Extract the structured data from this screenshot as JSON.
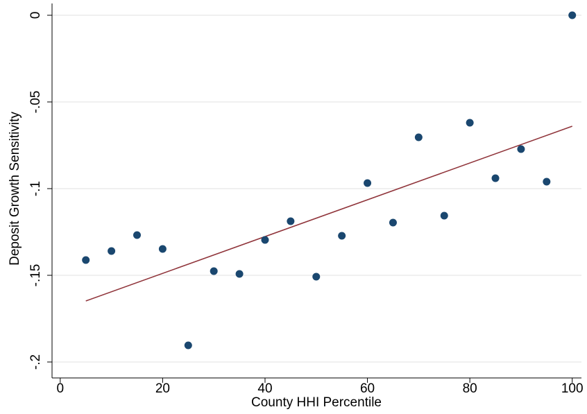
{
  "chart_data": {
    "type": "scatter",
    "x_label": "County HHI Percentile",
    "y_label": "Deposit Growth Sensitivity",
    "x": [
      5,
      10,
      15,
      20,
      25,
      30,
      35,
      40,
      45,
      50,
      55,
      60,
      65,
      70,
      75,
      80,
      85,
      90,
      95,
      100
    ],
    "values": [
      -0.1412,
      -0.136,
      -0.1268,
      -0.1348,
      -0.1904,
      -0.1476,
      -0.1492,
      -0.1296,
      -0.1188,
      -0.1508,
      -0.1272,
      -0.0968,
      -0.1196,
      -0.0704,
      -0.1156,
      -0.062,
      -0.094,
      -0.0772,
      -0.096,
      0
    ],
    "color": "#1a476f",
    "fit": {
      "x": [
        5,
        100
      ],
      "values": [
        -0.1648,
        -0.064
      ],
      "color": "#90353b"
    },
    "xlim": [
      -1.6,
      101.8
    ],
    "ylim": [
      -0.2092,
      0.0068
    ],
    "xticks": [
      0,
      20,
      40,
      60,
      80,
      100
    ],
    "yticks": [
      0,
      {
        "value": -0.05,
        "label": "-.05"
      },
      {
        "value": -0.1,
        "label": "-.1"
      },
      {
        "value": -0.15,
        "label": "-.15"
      },
      {
        "value": -0.2,
        "label": "-.2"
      }
    ],
    "grid": true
  }
}
